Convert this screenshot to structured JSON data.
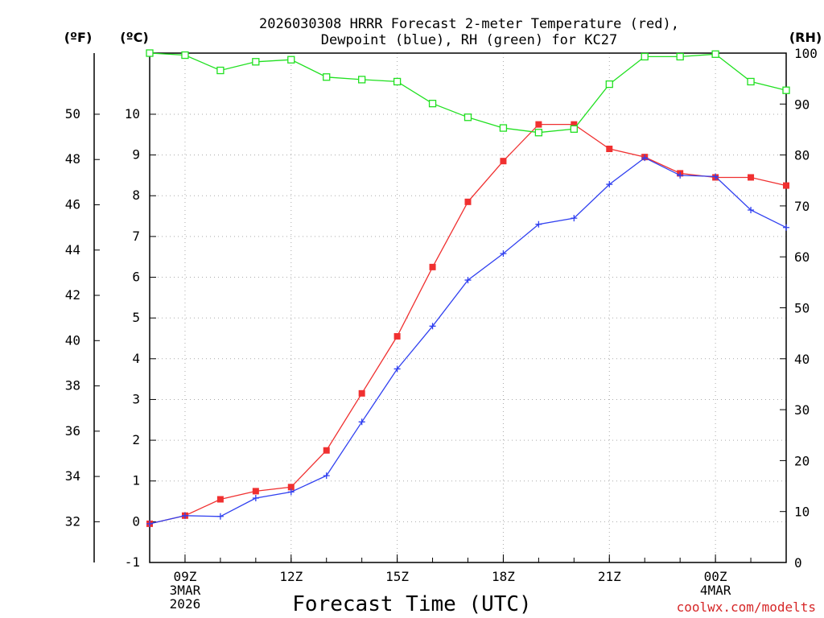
{
  "chart_data": {
    "type": "line",
    "title_lines": [
      "2026030308 HRRR Forecast 2-meter Temperature (red),",
      "Dewpoint (blue), RH (green) for KC27"
    ],
    "xlabel": "Forecast Time (UTC)",
    "credit": "coolwx.com/modelts",
    "left_unit_f": "(ºF)",
    "left_unit_c": "(ºC)",
    "right_unit": "(RH)",
    "x_hours": [
      8,
      9,
      10,
      11,
      12,
      13,
      14,
      15,
      16,
      17,
      18,
      19,
      20,
      21,
      22,
      23,
      24,
      25,
      26
    ],
    "x_ticks": [
      {
        "hour": 9,
        "lines": [
          "09Z",
          "3MAR",
          "2026"
        ]
      },
      {
        "hour": 12,
        "lines": [
          "12Z"
        ]
      },
      {
        "hour": 15,
        "lines": [
          "15Z"
        ]
      },
      {
        "hour": 18,
        "lines": [
          "18Z"
        ]
      },
      {
        "hour": 21,
        "lines": [
          "21Z"
        ]
      },
      {
        "hour": 24,
        "lines": [
          "00Z",
          "4MAR"
        ]
      }
    ],
    "xlim": [
      8,
      26
    ],
    "ylim_c": [
      -1,
      11.5
    ],
    "y_ticks_c": [
      "-1",
      "0",
      "1",
      "2",
      "3",
      "4",
      "5",
      "6",
      "7",
      "8",
      "9",
      "10"
    ],
    "y_ticks_f": [
      "32",
      "34",
      "36",
      "38",
      "40",
      "42",
      "44",
      "46",
      "48",
      "50"
    ],
    "ylim_rh": [
      0,
      100
    ],
    "y_ticks_rh": [
      "0",
      "10",
      "20",
      "30",
      "40",
      "50",
      "60",
      "70",
      "80",
      "90",
      "100"
    ],
    "series": [
      {
        "name": "Temperature",
        "unit": "C",
        "color": "#f03030",
        "marker": "square-filled",
        "values": [
          -0.05,
          0.15,
          0.55,
          0.75,
          0.85,
          1.75,
          3.15,
          4.55,
          6.25,
          7.85,
          8.85,
          9.75,
          9.75,
          9.15,
          8.95,
          8.55,
          8.45,
          8.45,
          8.25
        ]
      },
      {
        "name": "Dewpoint",
        "unit": "C",
        "color": "#3040f0",
        "marker": "plus",
        "values": [
          -0.05,
          0.15,
          0.13,
          0.58,
          0.73,
          1.13,
          2.45,
          3.75,
          4.8,
          5.93,
          6.58,
          7.3,
          7.45,
          8.28,
          8.93,
          8.5,
          8.47,
          7.65,
          7.22
        ]
      },
      {
        "name": "RH",
        "unit": "%",
        "color": "#20e020",
        "marker": "square-open",
        "values": [
          100.0,
          99.6,
          96.6,
          98.3,
          98.7,
          95.3,
          94.8,
          94.4,
          90.1,
          87.4,
          85.3,
          84.4,
          85.1,
          93.9,
          99.3,
          99.3,
          99.8,
          94.4,
          92.7
        ]
      }
    ]
  }
}
